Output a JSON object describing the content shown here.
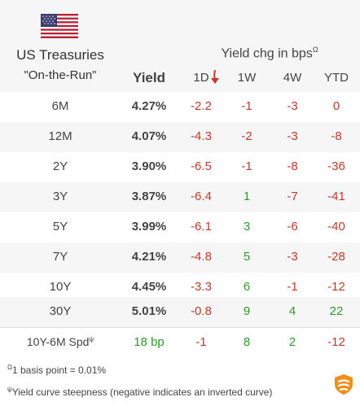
{
  "header": {
    "flag_icon": "us-flag-icon",
    "title_line1": "US Treasuries",
    "title_line2": "\"On-the-Run\"",
    "yield_label": "Yield",
    "chg_label": "Yield chg in bps",
    "chg_label_mark": "Ω",
    "columns": [
      "1D",
      "1W",
      "4W",
      "YTD"
    ],
    "sort_icon": "sort-down-arrow-icon"
  },
  "rows": [
    {
      "label": "6M",
      "yield": "4.27%",
      "d1": "-2.2",
      "w1": "-1",
      "w4": "-3",
      "ytd": "0"
    },
    {
      "label": "12M",
      "yield": "4.07%",
      "d1": "-4.3",
      "w1": "-2",
      "w4": "-3",
      "ytd": "-8"
    },
    {
      "label": "2Y",
      "yield": "3.90%",
      "d1": "-6.5",
      "w1": "-1",
      "w4": "-8",
      "ytd": "-36"
    },
    {
      "label": "3Y",
      "yield": "3.87%",
      "d1": "-6.4",
      "w1": "1",
      "w4": "-7",
      "ytd": "-41"
    },
    {
      "label": "5Y",
      "yield": "3.99%",
      "d1": "-6.1",
      "w1": "3",
      "w4": "-6",
      "ytd": "-40"
    },
    {
      "label": "7Y",
      "yield": "4.21%",
      "d1": "-4.8",
      "w1": "5",
      "w4": "-3",
      "ytd": "-28"
    },
    {
      "label": "10Y",
      "yield": "4.45%",
      "d1": "-3.3",
      "w1": "6",
      "w4": "-1",
      "ytd": "-12"
    },
    {
      "label": "30Y",
      "yield": "5.01%",
      "d1": "-0.8",
      "w1": "9",
      "w4": "4",
      "ytd": "22"
    }
  ],
  "spread": {
    "label": "10Y-6M Spd",
    "label_mark": "ψ",
    "yield": "18 bp",
    "d1": "-1",
    "w1": "8",
    "w4": "2",
    "ytd": "-12"
  },
  "footnotes": {
    "fn1_mark": "Ω",
    "fn1": "1 basis point = 0.01%",
    "fn2_mark": "ψ",
    "fn2": "Yield curve steepness (negative indicates an inverted curve)"
  },
  "brand_icon": "logo-icon",
  "colors": {
    "negative": "#c0392b",
    "positive": "#2e9a2e",
    "header_bg": "#f6f6f6",
    "accent": "#f28c1a"
  }
}
